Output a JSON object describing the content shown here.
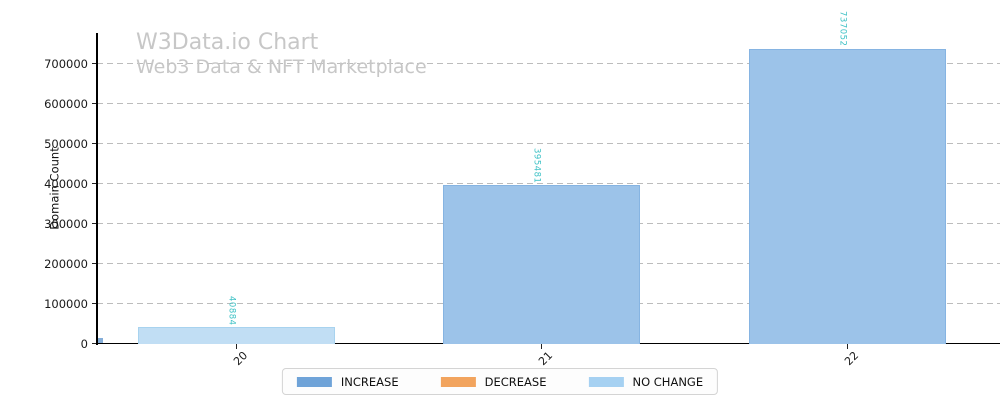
{
  "header": {
    "title": "W3Data.io Chart",
    "subtitle": "Web3 Data & NFT Marketplace",
    "text_color": "#c7c7c7"
  },
  "chart_data": {
    "type": "bar",
    "categories": [
      "20",
      "21",
      "22"
    ],
    "values": [
      40884,
      395481,
      737052
    ],
    "bar_series": [
      "NO CHANGE",
      "INCREASE",
      "INCREASE"
    ],
    "value_labels": [
      "40884",
      "395481",
      "737052"
    ],
    "value_label_color": "#3fc2c6",
    "title": "W3Data.io Chart",
    "subtitle": "Web3 Data & NFT Marketplace",
    "xlabel": "",
    "ylabel": "Domain Count",
    "yticks": [
      0,
      100000,
      200000,
      300000,
      400000,
      500000,
      600000,
      700000
    ],
    "ylim": [
      0,
      776000
    ],
    "grid": {
      "axis": "y",
      "style": "dashed",
      "color": "#bcbcbc"
    },
    "legend": {
      "position": "bottom-center",
      "items": [
        {
          "label": "INCREASE",
          "color": "#6fa3d8"
        },
        {
          "label": "DECREASE",
          "color": "#f2a45e"
        },
        {
          "label": "NO CHANGE",
          "color": "#a6d1f2"
        }
      ]
    },
    "series_styles": {
      "INCREASE": {
        "fill": "#9cc3e9",
        "edge": "#86b4e2"
      },
      "DECREASE": {
        "fill": "#f2a45e",
        "edge": "#e8944a"
      },
      "NO CHANGE": {
        "fill": "#c1def4",
        "edge": "#a8d3ef"
      }
    },
    "clipped_partial_bar_at_left_axis": {
      "color": "#85aed9"
    }
  }
}
